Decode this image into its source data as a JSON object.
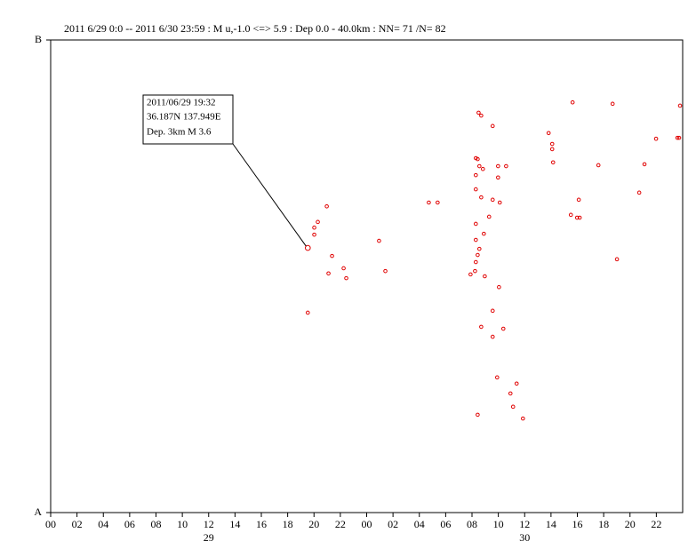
{
  "chart_data": {
    "type": "scatter",
    "title": "2011 6/29 0:0 -- 2011 6/30 23:59  : M u,-1.0 <=> 5.9   :  Dep 0.0 - 40.0km :  NN= 71 /N= 82",
    "xlim": [
      0,
      48
    ],
    "ylim": [
      0,
      100
    ],
    "xticks": [
      {
        "value": 0,
        "label": "00"
      },
      {
        "value": 2,
        "label": "02"
      },
      {
        "value": 4,
        "label": "04"
      },
      {
        "value": 6,
        "label": "06"
      },
      {
        "value": 8,
        "label": "08"
      },
      10,
      12,
      14,
      16,
      18,
      20,
      22,
      {
        "value": 24,
        "label": "00"
      },
      {
        "value": 26,
        "label": "02"
      },
      {
        "value": 28,
        "label": "04"
      },
      {
        "value": 30,
        "label": "06"
      },
      {
        "value": 32,
        "label": "08"
      },
      {
        "value": 34,
        "label": "10"
      },
      {
        "value": 36,
        "label": "12"
      },
      {
        "value": 38,
        "label": "14"
      },
      {
        "value": 40,
        "label": "16"
      },
      {
        "value": 42,
        "label": "18"
      },
      {
        "value": 44,
        "label": "20"
      },
      {
        "value": 46,
        "label": "22"
      }
    ],
    "x_day_labels": [
      {
        "value": 12,
        "label": "29"
      },
      {
        "value": 36,
        "label": "30"
      }
    ],
    "yticks": [
      {
        "value": 0,
        "label": "A"
      },
      {
        "value": 100,
        "label": "B"
      }
    ],
    "color": "#e00000",
    "x": [
      19.53,
      19.53,
      20.97,
      20.29,
      20.02,
      20.02,
      21.37,
      21.1,
      22.25,
      22.45,
      24.94,
      25.42,
      28.72,
      29.39,
      32.5,
      32.7,
      33.57,
      32.29,
      32.43,
      32.56,
      32.29,
      32.83,
      33.98,
      34.59,
      33.98,
      32.29,
      32.7,
      33.57,
      34.11,
      33.3,
      32.29,
      32.29,
      32.56,
      32.43,
      32.29,
      32.23,
      31.89,
      32.97,
      32.9,
      34.05,
      33.57,
      32.7,
      34.38,
      33.57,
      33.91,
      32.43,
      34.92,
      35.39,
      35.12,
      35.87,
      37.82,
      38.09,
      38.09,
      38.16,
      39.64,
      39.51,
      39.98,
      40.18,
      40.11,
      41.6,
      42.68,
      43.01,
      44.7,
      45.1,
      45.98,
      47.6,
      47.8,
      47.73
    ],
    "values": [
      56.0,
      42.3,
      64.8,
      61.5,
      60.3,
      58.8,
      54.3,
      50.6,
      51.7,
      49.6,
      57.5,
      51.1,
      65.6,
      65.6,
      84.6,
      84.0,
      81.8,
      75.0,
      74.8,
      73.3,
      71.4,
      72.7,
      73.3,
      73.3,
      70.9,
      68.4,
      66.7,
      66.2,
      65.6,
      62.6,
      61.1,
      57.7,
      55.8,
      54.5,
      53.0,
      51.1,
      50.4,
      50.0,
      59.0,
      47.7,
      42.7,
      39.3,
      38.9,
      37.2,
      28.6,
      20.7,
      25.2,
      27.3,
      22.4,
      19.9,
      80.3,
      78.0,
      76.9,
      74.1,
      86.8,
      63.0,
      62.4,
      62.4,
      66.2,
      73.5,
      86.5,
      53.6,
      67.7,
      73.7,
      79.1,
      79.3,
      86.1,
      79.3
    ],
    "annotation": {
      "lines": [
        "2011/06/29 19:32",
        "36.187N  137.949E",
        "Dep. 3km    M 3.6"
      ]
    }
  }
}
